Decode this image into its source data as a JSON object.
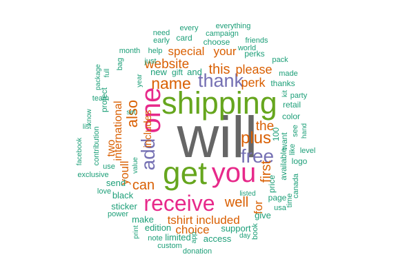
{
  "chart_data": {
    "type": "word-cloud",
    "palette": {
      "gray": "#666666",
      "green": "#66a61e",
      "magenta": "#e7298a",
      "purple": "#7570b3",
      "orange": "#d95f02",
      "teal": "#1b9e77"
    },
    "words": [
      {
        "text": "will",
        "color": "gray"
      },
      {
        "text": "shipping",
        "color": "green"
      },
      {
        "text": "get",
        "color": "green"
      },
      {
        "text": "you",
        "color": "magenta"
      },
      {
        "text": "one",
        "color": "magenta"
      },
      {
        "text": "receive",
        "color": "magenta"
      },
      {
        "text": "free",
        "color": "purple"
      },
      {
        "text": "thank",
        "color": "purple"
      },
      {
        "text": "add",
        "color": "purple"
      },
      {
        "text": "name",
        "color": "orange"
      },
      {
        "text": "plus",
        "color": "orange"
      },
      {
        "text": "also",
        "color": "orange"
      },
      {
        "text": "website",
        "color": "orange"
      },
      {
        "text": "this",
        "color": "orange"
      },
      {
        "text": "the",
        "color": "orange"
      },
      {
        "text": "well",
        "color": "orange"
      },
      {
        "text": "first",
        "color": "orange"
      },
      {
        "text": "can",
        "color": "orange"
      },
      {
        "text": "please",
        "color": "orange"
      },
      {
        "text": "perk",
        "color": "orange"
      },
      {
        "text": "your",
        "color": "orange"
      },
      {
        "text": "special",
        "color": "orange"
      },
      {
        "text": "tshirt",
        "color": "orange"
      },
      {
        "text": "included",
        "color": "orange"
      },
      {
        "text": "choice",
        "color": "orange"
      },
      {
        "text": "for",
        "color": "orange"
      },
      {
        "text": "two",
        "color": "orange"
      },
      {
        "text": "youll",
        "color": "orange"
      },
      {
        "text": "international",
        "color": "orange"
      },
      {
        "text": "includes",
        "color": "orange"
      },
      {
        "text": "send",
        "color": "teal"
      },
      {
        "text": "black",
        "color": "teal"
      },
      {
        "text": "sticker",
        "color": "teal"
      },
      {
        "text": "make",
        "color": "teal"
      },
      {
        "text": "edition",
        "color": "teal"
      },
      {
        "text": "limited",
        "color": "teal"
      },
      {
        "text": "support",
        "color": "teal"
      },
      {
        "text": "access",
        "color": "teal"
      },
      {
        "text": "give",
        "color": "teal"
      },
      {
        "text": "page",
        "color": "teal"
      },
      {
        "text": "logo",
        "color": "teal"
      },
      {
        "text": "want",
        "color": "teal"
      },
      {
        "text": "available",
        "color": "teal"
      },
      {
        "text": "price",
        "color": "teal"
      },
      {
        "text": "100",
        "color": "teal"
      },
      {
        "text": "color",
        "color": "teal"
      },
      {
        "text": "retail",
        "color": "teal"
      },
      {
        "text": "thanks",
        "color": "teal"
      },
      {
        "text": "perks",
        "color": "teal"
      },
      {
        "text": "new",
        "color": "teal"
      },
      {
        "text": "gift",
        "color": "teal"
      },
      {
        "text": "and",
        "color": "teal"
      },
      {
        "text": "just",
        "color": "teal"
      },
      {
        "text": "help",
        "color": "teal"
      },
      {
        "text": "month",
        "color": "teal"
      },
      {
        "text": "early",
        "color": "teal"
      },
      {
        "text": "card",
        "color": "teal"
      },
      {
        "text": "need",
        "color": "teal"
      },
      {
        "text": "every",
        "color": "teal"
      },
      {
        "text": "choose",
        "color": "teal"
      },
      {
        "text": "campaign",
        "color": "teal"
      },
      {
        "text": "everything",
        "color": "teal"
      },
      {
        "text": "friends",
        "color": "teal"
      },
      {
        "text": "world",
        "color": "teal"
      },
      {
        "text": "pack",
        "color": "teal"
      },
      {
        "text": "made",
        "color": "teal"
      },
      {
        "text": "kit",
        "color": "teal"
      },
      {
        "text": "party",
        "color": "teal"
      },
      {
        "text": "see",
        "color": "teal"
      },
      {
        "text": "hand",
        "color": "teal"
      },
      {
        "text": "like",
        "color": "teal"
      },
      {
        "text": "level",
        "color": "teal"
      },
      {
        "text": "canada",
        "color": "teal"
      },
      {
        "text": "time",
        "color": "teal"
      },
      {
        "text": "usa",
        "color": "teal"
      },
      {
        "text": "listed",
        "color": "teal"
      },
      {
        "text": "book",
        "color": "teal"
      },
      {
        "text": "day",
        "color": "teal"
      },
      {
        "text": "donation",
        "color": "teal"
      },
      {
        "text": "app",
        "color": "teal"
      },
      {
        "text": "custom",
        "color": "teal"
      },
      {
        "text": "note",
        "color": "teal"
      },
      {
        "text": "print",
        "color": "teal"
      },
      {
        "text": "power",
        "color": "teal"
      },
      {
        "text": "love",
        "color": "teal"
      },
      {
        "text": "exclusive",
        "color": "teal"
      },
      {
        "text": "use",
        "color": "teal"
      },
      {
        "text": "value",
        "color": "teal"
      },
      {
        "text": "contribution",
        "color": "teal"
      },
      {
        "text": "list",
        "color": "teal"
      },
      {
        "text": "facebook",
        "color": "teal"
      },
      {
        "text": "know",
        "color": "teal"
      },
      {
        "text": "project",
        "color": "teal"
      },
      {
        "text": "team",
        "color": "teal"
      },
      {
        "text": "set",
        "color": "teal"
      },
      {
        "text": "package",
        "color": "teal"
      },
      {
        "text": "full",
        "color": "teal"
      },
      {
        "text": "bag",
        "color": "teal"
      },
      {
        "text": "year",
        "color": "teal"
      }
    ]
  }
}
